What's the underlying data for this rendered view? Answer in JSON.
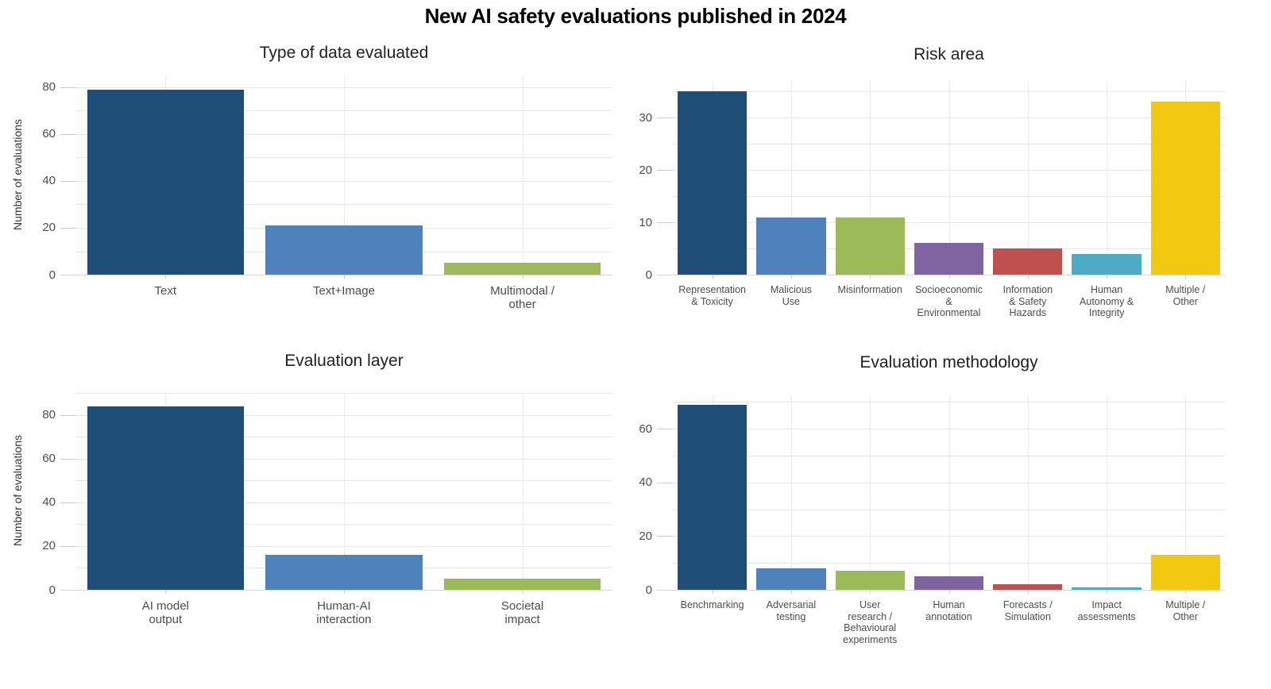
{
  "title": "New AI safety evaluations published in 2024",
  "chart_data": [
    {
      "type": "bar",
      "title": "Type of data evaluated",
      "ylabel": "Number of evaluations",
      "xlabel": "",
      "categories": [
        "Text",
        "Text+Image",
        "Multimodal /\nother"
      ],
      "values": [
        79,
        21,
        5
      ],
      "colors": [
        "#1f4e79",
        "#4f81bd",
        "#9bbb59"
      ],
      "ylim": [
        0,
        85
      ],
      "ytick_major": 20,
      "ytick_minor": 10,
      "grid": true,
      "legend": "none"
    },
    {
      "type": "bar",
      "title": "Risk area",
      "ylabel": "",
      "xlabel": "",
      "categories": [
        "Representation\n& Toxicity",
        "Malicious\nUse",
        "Misinformation",
        "Socioeconomic\n&\nEnvironmental",
        "Information\n& Safety\nHazards",
        "Human\nAutonomy &\nIntegrity",
        "Multiple /\nOther"
      ],
      "values": [
        35,
        11,
        11,
        6,
        5,
        4,
        33
      ],
      "colors": [
        "#1f4e79",
        "#4f81bd",
        "#9bbb59",
        "#8064a2",
        "#c0504d",
        "#4bacc6",
        "#f2c811"
      ],
      "ylim": [
        0,
        37
      ],
      "ytick_major": 10,
      "ytick_minor": 5,
      "grid": true,
      "legend": "none"
    },
    {
      "type": "bar",
      "title": "Evaluation layer",
      "ylabel": "Number of evaluations",
      "xlabel": "",
      "categories": [
        "AI model\noutput",
        "Human-AI\ninteraction",
        "Societal\nimpact"
      ],
      "values": [
        84,
        16,
        5
      ],
      "colors": [
        "#1f4e79",
        "#4f81bd",
        "#9bbb59"
      ],
      "ylim": [
        0,
        90
      ],
      "ytick_major": 20,
      "ytick_minor": 10,
      "grid": true,
      "legend": "none"
    },
    {
      "type": "bar",
      "title": "Evaluation methodology",
      "ylabel": "",
      "xlabel": "",
      "categories": [
        "Benchmarking",
        "Adversarial\ntesting",
        "User\nresearch /\nBehavioural\nexperiments",
        "Human\nannotation",
        "Forecasts /\nSimulation",
        "Impact\nassessments",
        "Multiple /\nOther"
      ],
      "values": [
        69,
        8,
        7,
        5,
        2,
        1,
        13
      ],
      "colors": [
        "#1f4e79",
        "#4f81bd",
        "#9bbb59",
        "#8064a2",
        "#c0504d",
        "#4bacc6",
        "#f2c811"
      ],
      "ylim": [
        0,
        72.5
      ],
      "ytick_major": 20,
      "ytick_minor": 10,
      "grid": true,
      "legend": "none"
    }
  ]
}
